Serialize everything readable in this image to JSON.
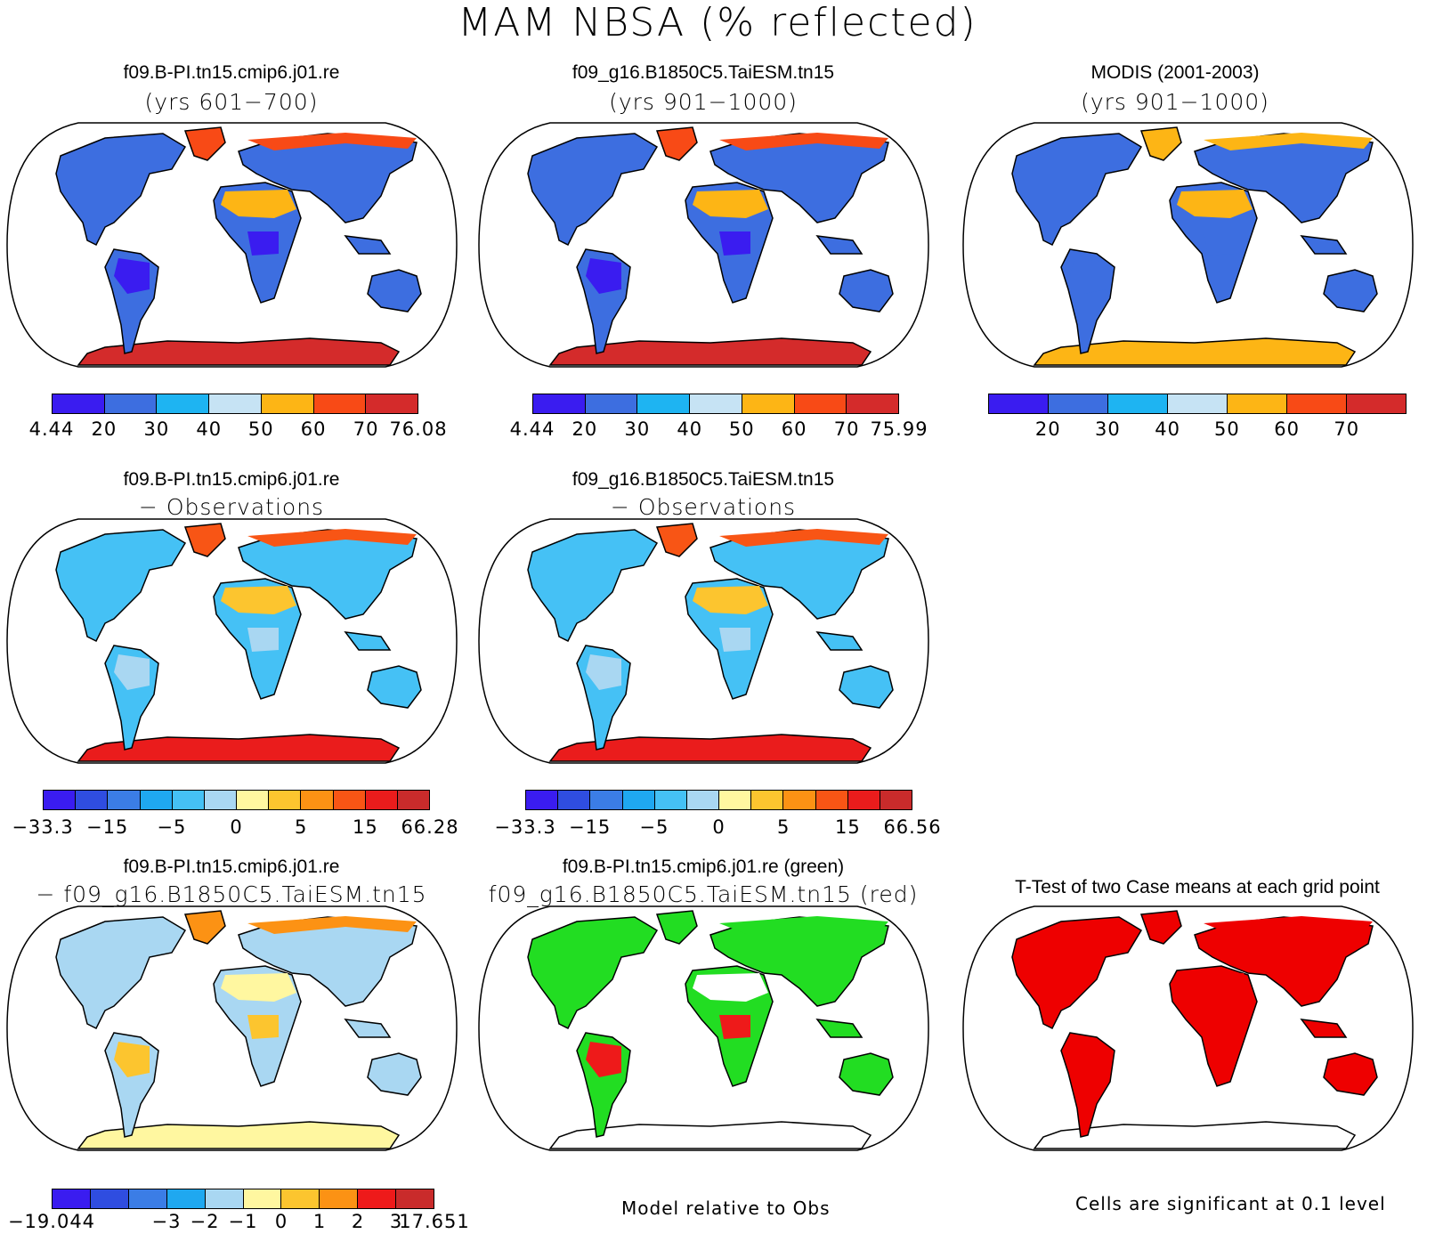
{
  "title": "MAM NBSA (% reflected)",
  "panels": {
    "p1": {
      "line1": "f09.B-PI.tn15.cmip6.j01.re",
      "line2": "(yrs 601−700)"
    },
    "p2": {
      "line1": "f09_g16.B1850C5.TaiESM.tn15",
      "line2": "(yrs 901−1000)"
    },
    "p3": {
      "line1": "MODIS (2001-2003)",
      "line2": "(yrs 901−1000)"
    },
    "p4": {
      "line1": "f09.B-PI.tn15.cmip6.j01.re",
      "line2": "− Observations"
    },
    "p5": {
      "line1": "f09_g16.B1850C5.TaiESM.tn15",
      "line2": "− Observations"
    },
    "p6": {
      "line1": "f09.B-PI.tn15.cmip6.j01.re",
      "line2": "− f09_g16.B1850C5.TaiESM.tn15"
    },
    "p7": {
      "line1": "f09.B-PI.tn15.cmip6.j01.re (green)",
      "line2": "f09_g16.B1850C5.TaiESM.tn15 (red)"
    },
    "p8": {
      "line1": "T-Test of two Case means at each grid point"
    }
  },
  "colorbars": {
    "abs_colors": [
      "#3a1cf0",
      "#3d6ee0",
      "#1eb4f2",
      "#c6e3f4",
      "#fdb515",
      "#f84a16",
      "#d42b2b"
    ],
    "diff_colors": [
      "#3a1cf0",
      "#2f4de0",
      "#3b7de6",
      "#1fa8f0",
      "#45c1f5",
      "#a9d7f2",
      "#fff7a0",
      "#fcc52f",
      "#fc9214",
      "#f85515",
      "#ea1c1c",
      "#c92b2b"
    ],
    "t6_colors": [
      "#3a1cf0",
      "#2f4de0",
      "#3b7de6",
      "#1fa8f0",
      "#a9d7f2",
      "#fff7a0",
      "#fcc52f",
      "#fc9214",
      "#ee1a1a",
      "#c92b2b"
    ],
    "cb1_ticks": [
      "4.44",
      "20",
      "30",
      "40",
      "50",
      "60",
      "70",
      "76.08"
    ],
    "cb2_ticks": [
      "4.44",
      "20",
      "30",
      "40",
      "50",
      "60",
      "70",
      "75.99"
    ],
    "cb3_ticks": [
      "20",
      "30",
      "40",
      "50",
      "60",
      "70"
    ],
    "cb4_ticks": [
      "−33.3",
      "−15",
      "−5",
      "0",
      "5",
      "15",
      "66.28"
    ],
    "cb5_ticks": [
      "−33.3",
      "−15",
      "−5",
      "0",
      "5",
      "15",
      "66.56"
    ],
    "cb6_ticks": [
      "−19.044",
      "−3",
      "−2",
      "−1",
      "0",
      "1",
      "2",
      "3",
      "17.651"
    ]
  },
  "notes": {
    "model_rel": "Model relative to Obs",
    "signif": "Cells are significant at 0.1 level"
  },
  "map_fills": {
    "p1": {
      "land": "#3d6ee0",
      "desert": "#fdb515",
      "ice": "#d42b2b",
      "arctic": "#f84a16",
      "rain": "#3a1cf0"
    },
    "p2": {
      "land": "#3d6ee0",
      "desert": "#fdb515",
      "ice": "#d42b2b",
      "arctic": "#f84a16",
      "rain": "#3a1cf0"
    },
    "p3": {
      "land": "#3d6ee0",
      "desert": "#fdb515",
      "ice": "#fdb515",
      "arctic": "#fdb515",
      "rain": "#3d6ee0"
    },
    "p4": {
      "land": "#45c1f5",
      "desert": "#fcc52f",
      "ice": "#ea1c1c",
      "arctic": "#f85515",
      "rain": "#a9d7f2"
    },
    "p5": {
      "land": "#45c1f5",
      "desert": "#fcc52f",
      "ice": "#ea1c1c",
      "arctic": "#f85515",
      "rain": "#a9d7f2"
    },
    "p6": {
      "land": "#a9d7f2",
      "desert": "#fff7a0",
      "ice": "#fff7a0",
      "arctic": "#fc9214",
      "rain": "#fcc52f"
    },
    "p7": {
      "land": "#22dd22",
      "desert": "#ffffff",
      "ice": "#ffffff",
      "arctic": "#22dd22",
      "rain": "#ee1a1a"
    },
    "p8": {
      "land": "#ee0000",
      "desert": "#ee0000",
      "ice": "#ffffff",
      "arctic": "#ee0000",
      "rain": "#ee0000"
    }
  }
}
